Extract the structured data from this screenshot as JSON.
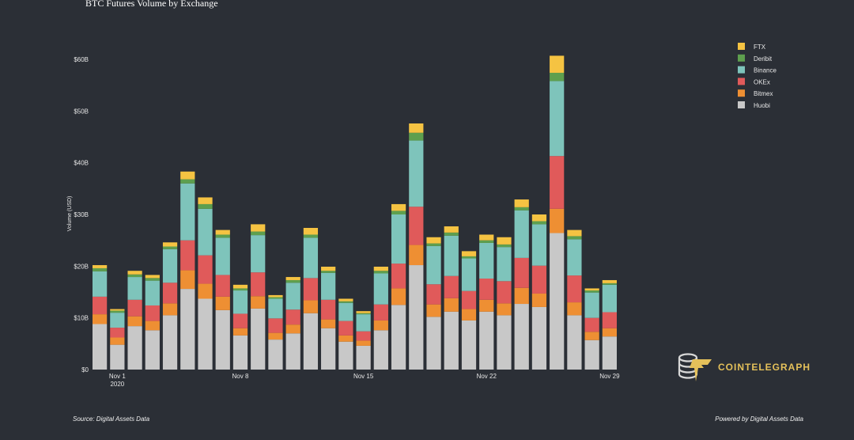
{
  "chart_data": {
    "type": "bar",
    "stacked": true,
    "title": "BTC Futures Volume by Exchange",
    "ylabel": "Volume (USD)",
    "xlabel": "",
    "ylim": [
      0,
      60
    ],
    "yticks": [
      {
        "value": 0,
        "label": "$0"
      },
      {
        "value": 10,
        "label": "$10B"
      },
      {
        "value": 20,
        "label": "$20B"
      },
      {
        "value": 30,
        "label": "$30B"
      },
      {
        "value": 40,
        "label": "$40B"
      },
      {
        "value": 50,
        "label": "$50B"
      },
      {
        "value": 60,
        "label": "$60B"
      }
    ],
    "categories": [
      "2020-10-31",
      "2020-11-01",
      "2020-11-02",
      "2020-11-03",
      "2020-11-04",
      "2020-11-05",
      "2020-11-06",
      "2020-11-07",
      "2020-11-08",
      "2020-11-09",
      "2020-11-10",
      "2020-11-11",
      "2020-11-12",
      "2020-11-13",
      "2020-11-14",
      "2020-11-15",
      "2020-11-16",
      "2020-11-17",
      "2020-11-18",
      "2020-11-19",
      "2020-11-20",
      "2020-11-21",
      "2020-11-22",
      "2020-11-23",
      "2020-11-24",
      "2020-11-25",
      "2020-11-26",
      "2020-11-27",
      "2020-11-28",
      "2020-11-29"
    ],
    "xticks": [
      {
        "index": 1,
        "label": "Nov 1",
        "sublabel": "2020"
      },
      {
        "index": 8,
        "label": "Nov 8",
        "sublabel": ""
      },
      {
        "index": 15,
        "label": "Nov 15",
        "sublabel": ""
      },
      {
        "index": 22,
        "label": "Nov 22",
        "sublabel": ""
      },
      {
        "index": 29,
        "label": "Nov 29",
        "sublabel": ""
      }
    ],
    "grid": false,
    "legend_position": "top-right",
    "series": [
      {
        "name": "Huobi",
        "color": "#c8c8c8",
        "values": [
          8.8,
          4.8,
          8.4,
          7.6,
          10.5,
          15.6,
          13.7,
          11.5,
          6.6,
          11.8,
          5.8,
          7,
          10.9,
          8,
          5.4,
          4.6,
          7.6,
          12.5,
          20.2,
          10.2,
          11.2,
          9.5,
          11.2,
          10.5,
          12.7,
          12.1,
          26.4,
          10.5,
          5.7,
          6.4
        ]
      },
      {
        "name": "Bitmex",
        "color": "#ee8f33",
        "values": [
          1.9,
          1.4,
          1.9,
          1.8,
          2.3,
          3.6,
          2.9,
          2.6,
          1.4,
          2.4,
          1.3,
          1.7,
          2.5,
          1.7,
          1.2,
          1,
          1.9,
          3.2,
          3.9,
          2.4,
          2.6,
          2.2,
          2.3,
          2.3,
          3.1,
          2.6,
          4.7,
          2.5,
          1.6,
          1.6
        ]
      },
      {
        "name": "OKEx",
        "color": "#e05a5a",
        "values": [
          3.4,
          1.9,
          3.2,
          3,
          4,
          5.8,
          5.5,
          4.2,
          2.8,
          4.6,
          2.8,
          2.9,
          4.3,
          3.8,
          2.8,
          1.8,
          3.1,
          4.8,
          7.4,
          3.9,
          4.3,
          3.5,
          4.1,
          4.3,
          5.8,
          5.4,
          10.2,
          5.2,
          2.7,
          3.1
        ]
      },
      {
        "name": "Binance",
        "color": "#7ec4bb",
        "values": [
          4.9,
          2.9,
          4.4,
          4.8,
          6.5,
          11,
          9,
          7.2,
          4.5,
          7.2,
          3.8,
          5.2,
          7.8,
          5.2,
          3.5,
          3.3,
          6,
          9.5,
          12.8,
          7.4,
          7.8,
          6.3,
          6.9,
          6.6,
          9.2,
          8,
          14.5,
          7,
          4.9,
          5.3
        ]
      },
      {
        "name": "Deribit",
        "color": "#5e9f4e",
        "values": [
          0.6,
          0.4,
          0.5,
          0.5,
          0.5,
          0.8,
          0.9,
          0.6,
          0.4,
          0.7,
          0.3,
          0.5,
          0.6,
          0.4,
          0.3,
          0.2,
          0.5,
          0.7,
          1.5,
          0.5,
          0.6,
          0.4,
          0.5,
          0.5,
          0.6,
          0.6,
          1.6,
          0.6,
          0.4,
          0.3
        ]
      },
      {
        "name": "FTX",
        "color": "#f5c342",
        "values": [
          0.6,
          0.3,
          0.7,
          0.6,
          0.8,
          1.5,
          1.3,
          0.9,
          0.7,
          1.4,
          0.4,
          0.6,
          1.3,
          0.8,
          0.5,
          0.4,
          0.8,
          1.3,
          1.8,
          1.2,
          1.2,
          1,
          1.1,
          1.4,
          1.5,
          1.3,
          3.3,
          1.2,
          0.4,
          0.6
        ]
      }
    ]
  },
  "footer": {
    "source": "Source: Digital Assets Data",
    "powered": "Powered by Digital Assets Data"
  },
  "brand": {
    "name": "COINTELEGRAPH",
    "icon": "cointelegraph-logo-icon",
    "accent": "#e5c15a"
  }
}
